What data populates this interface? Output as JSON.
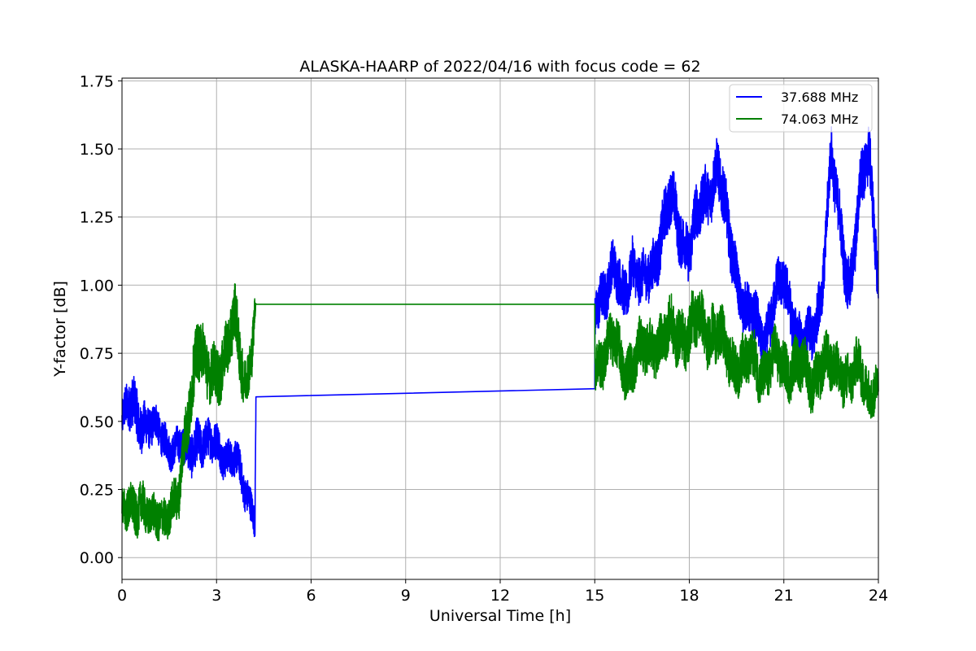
{
  "chart_data": {
    "type": "line",
    "title": "ALASKA-HAARP of 2022/04/16 with focus code = 62",
    "xlabel": "Universal Time [h]",
    "ylabel": "Y-factor [dB]",
    "xlim": [
      0,
      24
    ],
    "ylim": [
      -0.08,
      1.76
    ],
    "xticks": [
      0,
      3,
      6,
      9,
      12,
      15,
      18,
      21,
      24
    ],
    "xtick_labels": [
      "0",
      "3",
      "6",
      "9",
      "12",
      "15",
      "18",
      "21",
      "24"
    ],
    "yticks": [
      0.0,
      0.25,
      0.5,
      0.75,
      1.0,
      1.25,
      1.5,
      1.75
    ],
    "ytick_labels": [
      "0.00",
      "0.25",
      "0.50",
      "0.75",
      "1.00",
      "1.25",
      "1.50",
      "1.75"
    ],
    "grid": true,
    "legend": {
      "placement": "top-right"
    },
    "series": [
      {
        "name": "37.688 MHz",
        "color": "#0000ff",
        "x": [
          0,
          0.3,
          0.6,
          0.9,
          1.2,
          1.5,
          1.8,
          2.1,
          2.4,
          2.7,
          3.0,
          3.3,
          3.6,
          3.9,
          4.15,
          4.22,
          4.25,
          15.0,
          15.0,
          15.3,
          15.6,
          15.9,
          16.2,
          16.5,
          16.8,
          17.1,
          17.4,
          17.7,
          18.0,
          18.3,
          18.6,
          18.9,
          19.2,
          19.5,
          19.8,
          20.1,
          20.4,
          20.7,
          21.0,
          21.3,
          21.6,
          21.9,
          22.2,
          22.5,
          22.8,
          23.1,
          23.4,
          23.7,
          24.0
        ],
        "values": [
          0.5,
          0.55,
          0.52,
          0.48,
          0.45,
          0.42,
          0.4,
          0.38,
          0.45,
          0.4,
          0.42,
          0.38,
          0.35,
          0.25,
          0.2,
          0.15,
          0.59,
          0.62,
          0.9,
          1.0,
          1.05,
          0.95,
          1.1,
          0.98,
          1.05,
          1.2,
          1.3,
          1.2,
          1.15,
          1.25,
          1.35,
          1.45,
          1.2,
          1.05,
          0.9,
          0.85,
          0.8,
          0.95,
          1.0,
          0.9,
          0.75,
          0.8,
          1.0,
          1.45,
          1.2,
          1.0,
          1.3,
          1.5,
          1.05
        ],
        "noise": [
          0.08,
          0.1,
          0.1,
          0.08,
          0.07,
          0.07,
          0.07,
          0.09,
          0.09,
          0.08,
          0.08,
          0.07,
          0.07,
          0.07,
          0.07,
          0.06,
          0.0,
          0.0,
          0.1,
          0.1,
          0.1,
          0.1,
          0.1,
          0.1,
          0.1,
          0.11,
          0.11,
          0.11,
          0.11,
          0.11,
          0.11,
          0.11,
          0.11,
          0.1,
          0.1,
          0.1,
          0.1,
          0.1,
          0.1,
          0.1,
          0.1,
          0.1,
          0.1,
          0.11,
          0.11,
          0.11,
          0.11,
          0.12,
          0.1
        ]
      },
      {
        "name": "74.063 MHz",
        "color": "#008000",
        "x": [
          0,
          0.3,
          0.6,
          0.9,
          1.2,
          1.5,
          1.8,
          2.1,
          2.4,
          2.7,
          3.0,
          3.3,
          3.6,
          3.9,
          4.15,
          4.22,
          4.25,
          15.0,
          15.0,
          15.3,
          15.6,
          15.9,
          16.2,
          16.5,
          16.8,
          17.1,
          17.4,
          17.7,
          18.0,
          18.3,
          18.6,
          18.9,
          19.2,
          19.5,
          19.8,
          20.1,
          20.4,
          20.7,
          21.0,
          21.3,
          21.6,
          21.9,
          22.2,
          22.5,
          22.8,
          23.1,
          23.4,
          23.7,
          24.0
        ],
        "values": [
          0.15,
          0.18,
          0.22,
          0.12,
          0.15,
          0.18,
          0.2,
          0.55,
          0.8,
          0.65,
          0.7,
          0.75,
          0.85,
          0.65,
          0.8,
          0.9,
          0.93,
          0.93,
          0.72,
          0.75,
          0.78,
          0.72,
          0.7,
          0.75,
          0.8,
          0.78,
          0.82,
          0.85,
          0.8,
          0.88,
          0.85,
          0.8,
          0.75,
          0.72,
          0.7,
          0.72,
          0.68,
          0.72,
          0.7,
          0.72,
          0.68,
          0.65,
          0.72,
          0.68,
          0.7,
          0.65,
          0.68,
          0.62,
          0.65
        ],
        "noise": [
          0.08,
          0.09,
          0.09,
          0.08,
          0.08,
          0.08,
          0.09,
          0.12,
          0.12,
          0.11,
          0.11,
          0.11,
          0.12,
          0.1,
          0.1,
          0.06,
          0.0,
          0.0,
          0.1,
          0.1,
          0.1,
          0.1,
          0.1,
          0.1,
          0.1,
          0.1,
          0.11,
          0.11,
          0.11,
          0.11,
          0.11,
          0.11,
          0.1,
          0.1,
          0.1,
          0.1,
          0.1,
          0.1,
          0.1,
          0.1,
          0.1,
          0.1,
          0.1,
          0.1,
          0.1,
          0.1,
          0.1,
          0.09,
          0.09
        ]
      }
    ]
  }
}
